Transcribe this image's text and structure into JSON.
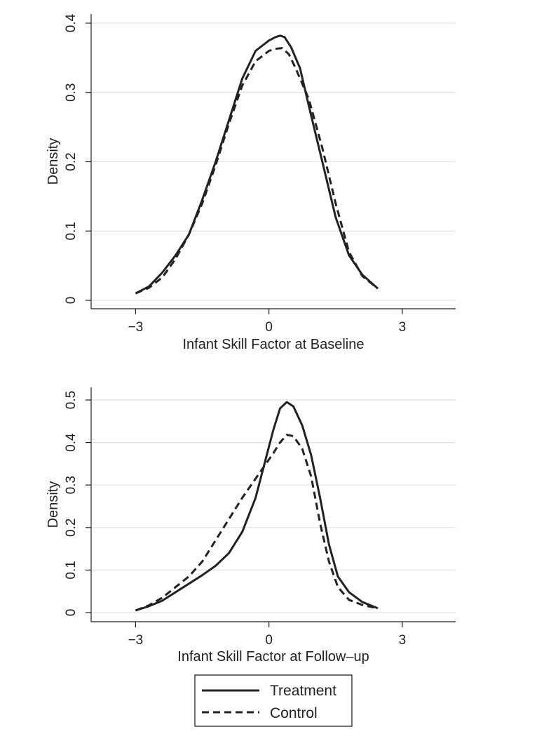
{
  "chart_data": [
    {
      "type": "line",
      "title": "",
      "xlabel": "Infant Skill Factor at Baseline",
      "ylabel": "Density",
      "xlim": [
        -4,
        4.2
      ],
      "ylim": [
        0,
        0.4
      ],
      "x_ticks": [
        -3,
        0,
        3
      ],
      "x_tick_labels": [
        "−3",
        "0",
        "3"
      ],
      "y_ticks": [
        0,
        0.1,
        0.2,
        0.3,
        0.4
      ],
      "y_tick_labels": [
        "0",
        "0.1",
        "0.2",
        "0.3",
        "0.4"
      ],
      "grid": true,
      "series": [
        {
          "name": "Treatment",
          "style": "solid",
          "x": [
            -3.0,
            -2.7,
            -2.4,
            -2.1,
            -1.8,
            -1.5,
            -1.2,
            -0.9,
            -0.6,
            -0.3,
            0.0,
            0.15,
            0.25,
            0.35,
            0.5,
            0.7,
            0.9,
            1.2,
            1.5,
            1.8,
            2.1,
            2.45
          ],
          "y": [
            0.01,
            0.02,
            0.04,
            0.065,
            0.095,
            0.145,
            0.2,
            0.26,
            0.32,
            0.36,
            0.375,
            0.38,
            0.382,
            0.38,
            0.365,
            0.335,
            0.28,
            0.2,
            0.12,
            0.065,
            0.037,
            0.017
          ]
        },
        {
          "name": "Control",
          "style": "dashed",
          "x": [
            -3.0,
            -2.7,
            -2.4,
            -2.1,
            -1.8,
            -1.5,
            -1.2,
            -0.9,
            -0.6,
            -0.3,
            0.0,
            0.15,
            0.3,
            0.45,
            0.6,
            0.9,
            1.2,
            1.5,
            1.8,
            2.1,
            2.45
          ],
          "y": [
            0.01,
            0.018,
            0.033,
            0.06,
            0.095,
            0.14,
            0.195,
            0.255,
            0.31,
            0.345,
            0.36,
            0.363,
            0.364,
            0.355,
            0.335,
            0.29,
            0.22,
            0.14,
            0.07,
            0.035,
            0.017
          ]
        }
      ]
    },
    {
      "type": "line",
      "title": "",
      "xlabel": "Infant Skill Factor at Follow–up",
      "ylabel": "Density",
      "xlim": [
        -4,
        4.2
      ],
      "ylim": [
        0,
        0.5
      ],
      "x_ticks": [
        -3,
        0,
        3
      ],
      "x_tick_labels": [
        "−3",
        "0",
        "3"
      ],
      "y_ticks": [
        0,
        0.1,
        0.2,
        0.3,
        0.4,
        0.5
      ],
      "y_tick_labels": [
        "0",
        "0.1",
        "0.2",
        "0.3",
        "0.4",
        "0.5"
      ],
      "grid": true,
      "series": [
        {
          "name": "Treatment",
          "style": "solid",
          "x": [
            -3.0,
            -2.7,
            -2.4,
            -2.1,
            -1.8,
            -1.5,
            -1.2,
            -0.9,
            -0.6,
            -0.3,
            -0.1,
            0.1,
            0.25,
            0.4,
            0.55,
            0.75,
            0.95,
            1.15,
            1.35,
            1.55,
            1.8,
            2.1,
            2.45
          ],
          "y": [
            0.005,
            0.015,
            0.028,
            0.048,
            0.068,
            0.088,
            0.11,
            0.14,
            0.19,
            0.27,
            0.35,
            0.43,
            0.48,
            0.495,
            0.485,
            0.44,
            0.37,
            0.27,
            0.16,
            0.085,
            0.048,
            0.025,
            0.01
          ]
        },
        {
          "name": "Control",
          "style": "dashed",
          "x": [
            -3.0,
            -2.7,
            -2.4,
            -2.1,
            -1.8,
            -1.5,
            -1.2,
            -0.9,
            -0.6,
            -0.3,
            -0.1,
            0.1,
            0.25,
            0.4,
            0.55,
            0.75,
            0.95,
            1.15,
            1.35,
            1.55,
            1.8,
            2.1,
            2.45
          ],
          "y": [
            0.005,
            0.017,
            0.035,
            0.06,
            0.085,
            0.12,
            0.17,
            0.22,
            0.27,
            0.315,
            0.345,
            0.375,
            0.4,
            0.418,
            0.415,
            0.385,
            0.32,
            0.21,
            0.12,
            0.06,
            0.03,
            0.018,
            0.01
          ]
        }
      ]
    }
  ],
  "legend": {
    "entries": [
      {
        "label": "Treatment",
        "style": "solid"
      },
      {
        "label": "Control",
        "style": "dashed"
      }
    ]
  }
}
